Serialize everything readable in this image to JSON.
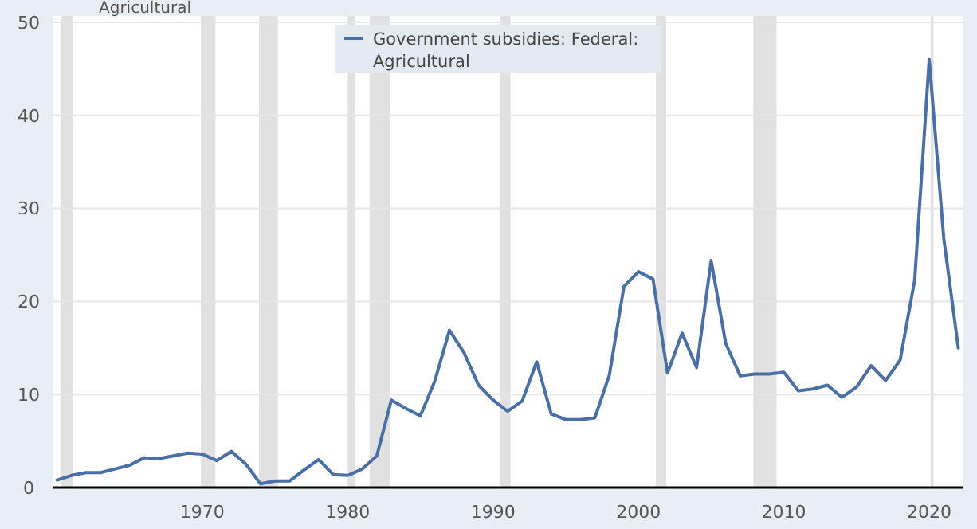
{
  "chart_data": {
    "type": "line",
    "annotations": [
      "Agricultural"
    ],
    "x": [
      1960,
      1961,
      1962,
      1963,
      1964,
      1965,
      1966,
      1967,
      1968,
      1969,
      1970,
      1971,
      1972,
      1973,
      1974,
      1975,
      1976,
      1977,
      1978,
      1979,
      1980,
      1981,
      1982,
      1983,
      1984,
      1985,
      1986,
      1987,
      1988,
      1989,
      1990,
      1991,
      1992,
      1993,
      1994,
      1995,
      1996,
      1997,
      1998,
      1999,
      2000,
      2001,
      2002,
      2003,
      2004,
      2005,
      2006,
      2007,
      2008,
      2009,
      2010,
      2011,
      2012,
      2013,
      2014,
      2015,
      2016,
      2017,
      2018,
      2019,
      2020,
      2021,
      2022
    ],
    "series": [
      {
        "name": "Government subsidies: Federal: Agricultural",
        "color": "#4a6fa5",
        "values": [
          0.8,
          1.3,
          1.6,
          1.6,
          2.0,
          2.4,
          3.2,
          3.1,
          3.4,
          3.7,
          3.6,
          2.9,
          3.9,
          2.5,
          0.4,
          0.7,
          0.7,
          1.9,
          3.0,
          1.4,
          1.3,
          2.0,
          3.4,
          9.4,
          8.5,
          7.7,
          11.5,
          16.9,
          14.5,
          11.0,
          9.4,
          8.2,
          9.3,
          13.5,
          7.9,
          7.3,
          7.3,
          7.5,
          12.1,
          21.6,
          23.2,
          22.4,
          12.3,
          16.6,
          12.9,
          24.4,
          15.5,
          12.0,
          12.2,
          12.2,
          12.4,
          10.4,
          10.6,
          11.0,
          9.7,
          10.8,
          13.1,
          11.5,
          13.7,
          22.3,
          46.0,
          26.8,
          15.0
        ]
      }
    ],
    "xlim": [
      1959.7,
      2022.3
    ],
    "xticks": [
      1970,
      1980,
      1990,
      2000,
      2010,
      2020
    ],
    "ylim": [
      0,
      50
    ],
    "yticks": [
      0,
      10,
      20,
      30,
      40,
      50
    ],
    "bands": [
      {
        "axis": "x",
        "from": 1960.3,
        "to": 1961.1,
        "color": "#e1e1e1"
      },
      {
        "axis": "x",
        "from": 1969.9,
        "to": 1970.9,
        "color": "#e1e1e1"
      },
      {
        "axis": "x",
        "from": 1973.9,
        "to": 1975.2,
        "color": "#e1e1e1"
      },
      {
        "axis": "x",
        "from": 1980.0,
        "to": 1980.5,
        "color": "#e1e1e1"
      },
      {
        "axis": "x",
        "from": 1981.5,
        "to": 1982.9,
        "color": "#e1e1e1"
      },
      {
        "axis": "x",
        "from": 1990.5,
        "to": 1991.2,
        "color": "#e1e1e1"
      },
      {
        "axis": "x",
        "from": 2001.2,
        "to": 2001.9,
        "color": "#e1e1e1"
      },
      {
        "axis": "x",
        "from": 2007.9,
        "to": 2009.5,
        "color": "#e1e1e1"
      },
      {
        "axis": "x",
        "from": 2020.1,
        "to": 2020.3,
        "color": "#e1e1e1"
      }
    ],
    "grid": "y",
    "legend": "top",
    "marker": "none",
    "line_style": "solid"
  }
}
